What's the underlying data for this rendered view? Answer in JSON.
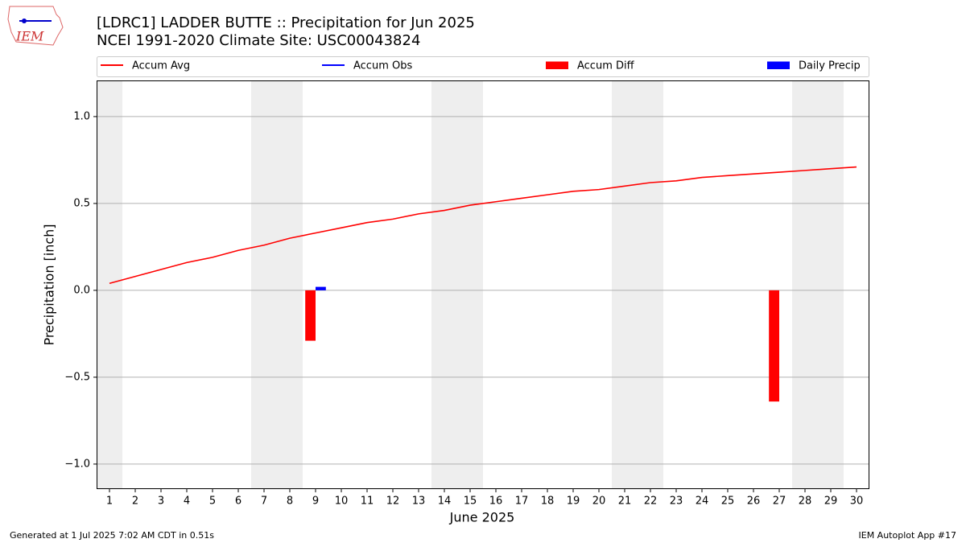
{
  "chart_data": {
    "type": "line",
    "title": "[LDRC1] LADDER BUTTE :: Precipitation for Jun 2025",
    "subtitle": "NCEI 1991-2020 Climate Site: USC00043824",
    "logo_text": "IEM",
    "xlabel": "June 2025",
    "ylabel": "Precipitation [inch]",
    "x": [
      1,
      2,
      3,
      4,
      5,
      6,
      7,
      8,
      9,
      10,
      11,
      12,
      13,
      14,
      15,
      16,
      17,
      18,
      19,
      20,
      21,
      22,
      23,
      24,
      25,
      26,
      27,
      28,
      29,
      30
    ],
    "series": [
      {
        "name": "Accum Avg",
        "kind": "line",
        "color": "#ff0000",
        "values": [
          0.04,
          0.08,
          0.12,
          0.16,
          0.19,
          0.23,
          0.26,
          0.3,
          0.33,
          0.36,
          0.39,
          0.41,
          0.44,
          0.46,
          0.49,
          0.51,
          0.53,
          0.55,
          0.57,
          0.58,
          0.6,
          0.62,
          0.63,
          0.65,
          0.66,
          0.67,
          0.68,
          0.69,
          0.7,
          0.71
        ]
      },
      {
        "name": "Accum Obs",
        "kind": "line",
        "color": "#0000ff",
        "values": [
          null,
          null,
          null,
          null,
          null,
          null,
          null,
          null,
          null,
          null,
          null,
          null,
          null,
          null,
          null,
          null,
          null,
          null,
          null,
          null,
          null,
          null,
          null,
          null,
          null,
          null,
          null,
          null,
          null,
          null
        ]
      },
      {
        "name": "Accum Diff",
        "kind": "bar",
        "color": "#ff0000",
        "values": [
          null,
          null,
          null,
          null,
          null,
          null,
          null,
          null,
          -0.29,
          null,
          null,
          null,
          null,
          null,
          null,
          null,
          null,
          null,
          null,
          null,
          null,
          null,
          null,
          null,
          null,
          null,
          -0.64,
          null,
          null,
          null
        ]
      },
      {
        "name": "Daily Precip",
        "kind": "bar",
        "color": "#0000ff",
        "values": [
          null,
          null,
          null,
          null,
          null,
          null,
          null,
          null,
          0.02,
          null,
          null,
          null,
          null,
          null,
          null,
          null,
          null,
          null,
          null,
          null,
          null,
          null,
          null,
          null,
          null,
          null,
          null,
          null,
          null,
          null
        ]
      }
    ],
    "xlim": [
      0.5,
      30.5
    ],
    "xticks": [
      1,
      2,
      3,
      4,
      5,
      6,
      7,
      8,
      9,
      10,
      11,
      12,
      13,
      14,
      15,
      16,
      17,
      18,
      19,
      20,
      21,
      22,
      23,
      24,
      25,
      26,
      27,
      28,
      29,
      30
    ],
    "ylim": [
      -1.144,
      1.208
    ],
    "yticks": [
      {
        "value": -1.0,
        "label": "−1.0"
      },
      {
        "value": -0.5,
        "label": "−0.5"
      },
      {
        "value": 0,
        "label": "0.0"
      },
      {
        "value": 0.5,
        "label": "0.5"
      },
      {
        "value": 1.0,
        "label": "1.0"
      }
    ],
    "grid": "y",
    "legend": "top",
    "footer_left": "Generated at 1 Jul 2025 7:02 AM CDT in 0.51s",
    "footer_right": "IEM Autoplot App #17"
  }
}
